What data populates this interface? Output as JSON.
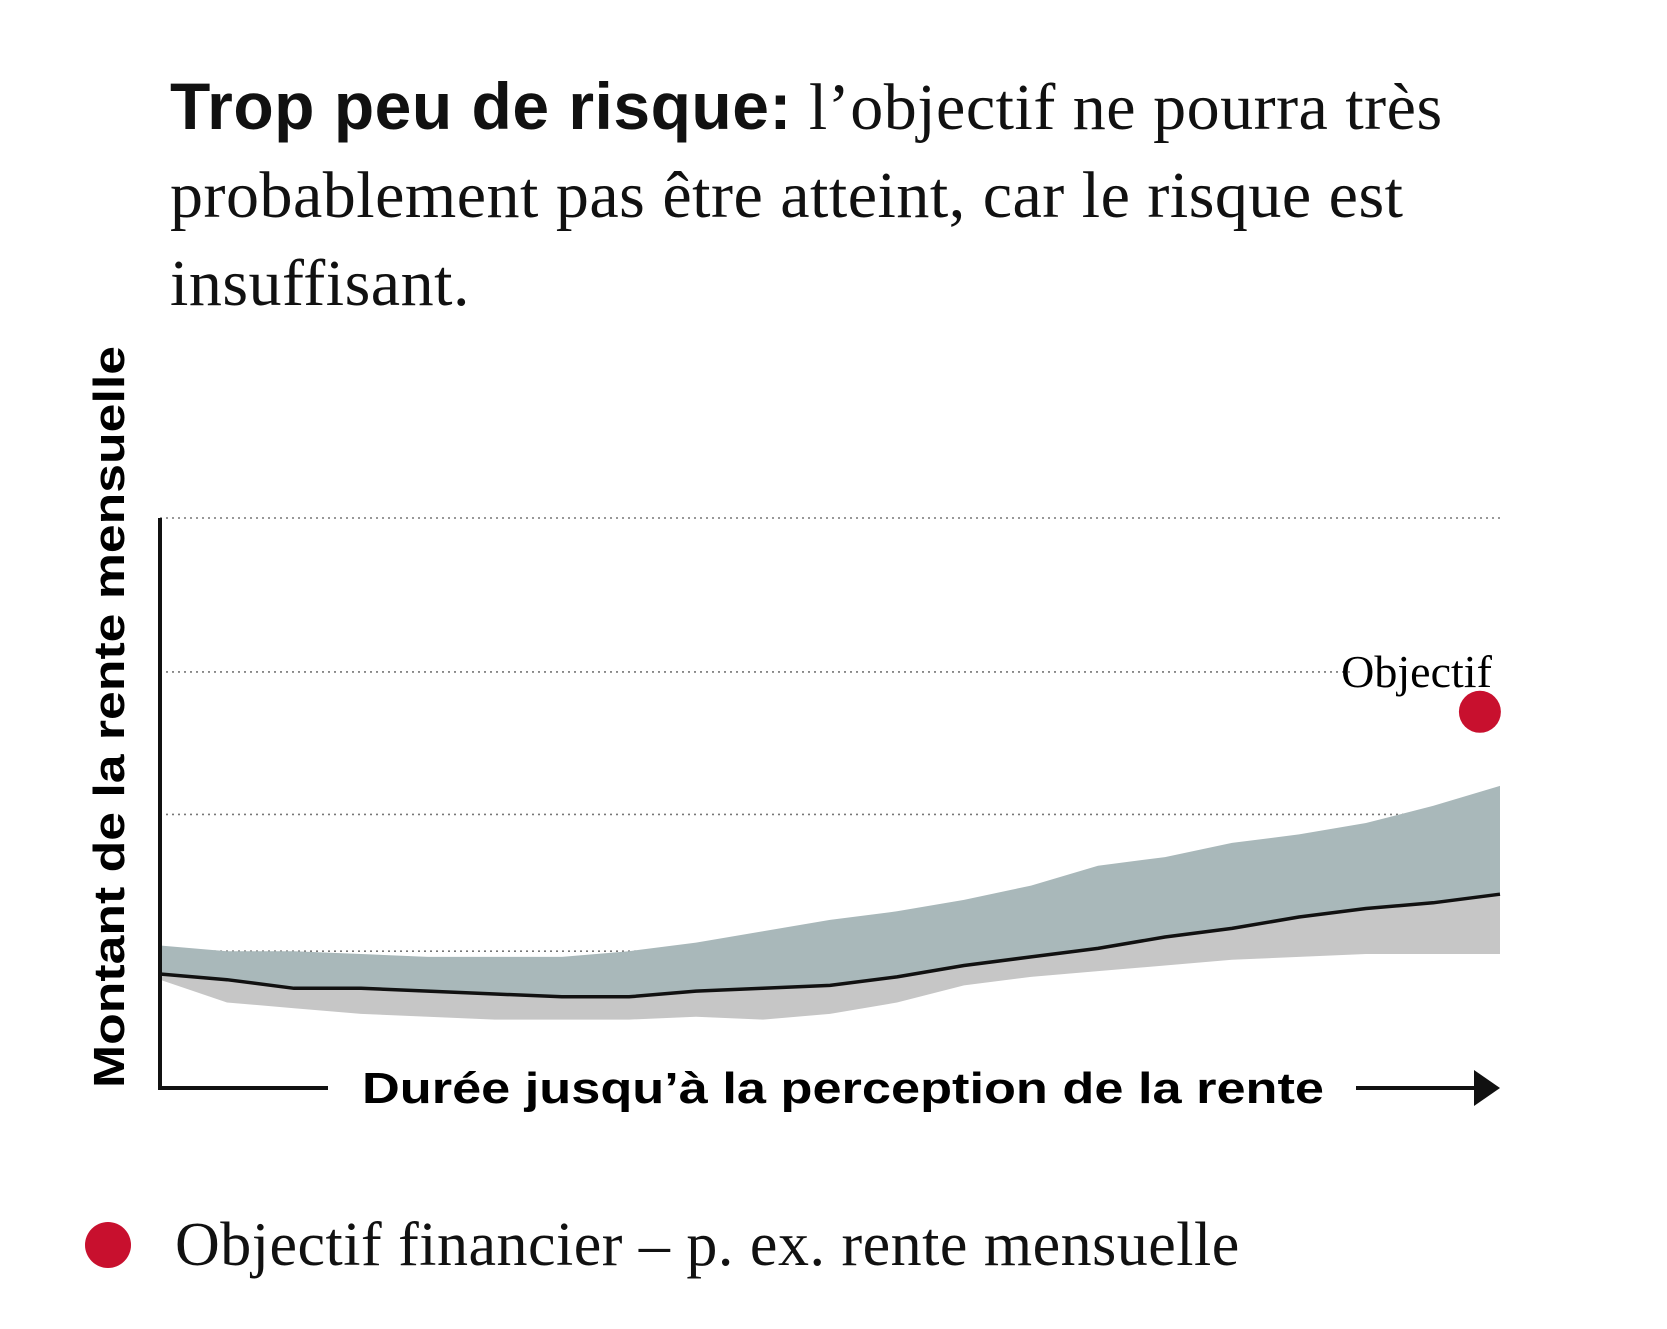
{
  "headline": {
    "bold": "Trop peu de risque:",
    "rest": " l’objectif ne pourra très probablement pas être atteint, car le risque est insuffisant."
  },
  "colors": {
    "upper_band": "#a9b8ba",
    "lower_band": "#c6c6c6",
    "median_line": "#111111",
    "target": "#c8102e",
    "grid": "#777777",
    "axis": "#111111"
  },
  "chart_data": {
    "type": "area",
    "title": "Trop peu de risque: l’objectif ne pourra très probablement pas être atteint, car le risque est insuffisant.",
    "xlabel": "Durée jusqu’à la perception de la rente",
    "ylabel": "Montant de la rente mensuelle",
    "xlim": [
      0,
      100
    ],
    "ylim": [
      0,
      100
    ],
    "x_ticks": [],
    "y_ticks": [],
    "grid": "horizontal-dotted",
    "gridlines_y": [
      24,
      48,
      73,
      100
    ],
    "x": [
      0,
      5,
      10,
      15,
      20,
      25,
      30,
      35,
      40,
      45,
      50,
      55,
      60,
      65,
      70,
      75,
      80,
      85,
      90,
      95,
      100
    ],
    "series": [
      {
        "values": [
          25,
          24,
          24,
          23.5,
          23,
          23,
          23,
          24,
          25.5,
          27.5,
          29.5,
          31,
          33,
          35.5,
          39,
          40.5,
          43,
          44.5,
          46.5,
          49.5,
          53
        ]
      },
      {
        "values": [
          20,
          19,
          17.5,
          17.5,
          17,
          16.5,
          16,
          16,
          17,
          17.5,
          18,
          19.5,
          21.5,
          23,
          24.5,
          26.5,
          28,
          30,
          31.5,
          32.5,
          34
        ]
      },
      {
        "values": [
          19,
          15,
          14,
          13,
          12.5,
          12,
          12,
          12,
          12.5,
          12,
          13,
          15,
          18,
          19.5,
          20.5,
          21.5,
          22.5,
          23,
          23.5,
          23.5,
          23.5
        ]
      }
    ],
    "annotations": [
      {
        "label": "Objectif",
        "x": 98.5,
        "y": 66
      }
    ],
    "legend": [
      {
        "label": "Objectif financier – p. ex. rente mensuelle",
        "marker": "dot",
        "color": "#c8102e"
      }
    ],
    "legend_position": "bottom-left"
  }
}
